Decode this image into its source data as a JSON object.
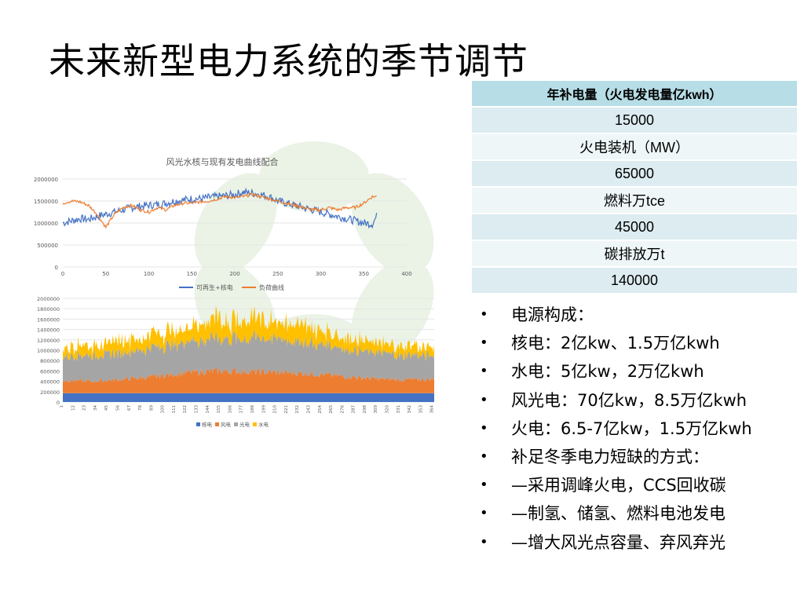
{
  "title": "未来新型电力系统的季节调节",
  "table": {
    "rows": [
      "年补电量（火电发电量亿kwh）",
      "15000",
      "火电装机（MW）",
      "65000",
      "燃料万tce",
      "45000",
      "碳排放万t",
      "140000"
    ]
  },
  "bullets": [
    "电源构成：",
    "核电：2亿kw、1.5万亿kwh",
    "水电：5亿kw，2万亿kwh",
    "风光电：70亿kw，8.5万亿kwh",
    "火电：6.5-7亿kw，1.5万亿kwh",
    "补足冬季电力短缺的方式：",
    "—采用调峰火电，CCS回收碳",
    "—制氢、储氢、燃料电池发电",
    "—增大风光点容量、弃风弃光"
  ],
  "bullet_symbol": "•",
  "colors": {
    "series_blue": "#4472c4",
    "series_orange": "#ed7d31",
    "series_gray": "#a5a5a5",
    "series_yellow": "#ffc000",
    "table_head": "#b7dde6",
    "watermark": "#d9ead3"
  },
  "chart_data": [
    {
      "type": "line",
      "title": "风光水核与现有发电曲线配合",
      "xlim": [
        0,
        400
      ],
      "ylim": [
        0,
        2000000
      ],
      "x_ticks": [
        "0",
        "50",
        "100",
        "150",
        "200",
        "250",
        "300",
        "350",
        "400"
      ],
      "y_ticks": [
        "0",
        "500000",
        "1000000",
        "1500000",
        "2000000"
      ],
      "grid": true,
      "legend_position": "bottom",
      "series": [
        {
          "name": "可再生+核电",
          "color": "#4472c4",
          "x": [
            0,
            10,
            20,
            30,
            40,
            50,
            60,
            70,
            80,
            90,
            100,
            110,
            120,
            130,
            140,
            150,
            160,
            170,
            180,
            190,
            200,
            210,
            220,
            230,
            240,
            250,
            260,
            270,
            280,
            290,
            300,
            310,
            320,
            330,
            340,
            350,
            360,
            365
          ],
          "y": [
            1000000,
            1050000,
            1100000,
            1080000,
            1150000,
            1200000,
            1250000,
            1300000,
            1350000,
            1380000,
            1400000,
            1420000,
            1450000,
            1500000,
            1520000,
            1550000,
            1550000,
            1580000,
            1600000,
            1620000,
            1650000,
            1700000,
            1680000,
            1650000,
            1600000,
            1500000,
            1450000,
            1400000,
            1350000,
            1300000,
            1250000,
            1200000,
            1150000,
            1100000,
            1050000,
            1000000,
            980000,
            1150000
          ]
        },
        {
          "name": "负荷曲线",
          "color": "#ed7d31",
          "x": [
            0,
            10,
            20,
            30,
            40,
            50,
            60,
            70,
            80,
            90,
            100,
            110,
            120,
            130,
            140,
            150,
            160,
            170,
            180,
            190,
            200,
            210,
            220,
            230,
            240,
            250,
            260,
            270,
            280,
            290,
            300,
            310,
            320,
            330,
            340,
            350,
            360,
            365
          ],
          "y": [
            1450000,
            1500000,
            1480000,
            1400000,
            1200000,
            900000,
            1200000,
            1350000,
            1400000,
            1300000,
            1250000,
            1350000,
            1300000,
            1400000,
            1450000,
            1450000,
            1480000,
            1500000,
            1550000,
            1600000,
            1580000,
            1600000,
            1650000,
            1600000,
            1550000,
            1500000,
            1450000,
            1400000,
            1350000,
            1300000,
            1300000,
            1350000,
            1300000,
            1350000,
            1350000,
            1450000,
            1600000,
            1600000
          ]
        }
      ]
    },
    {
      "type": "area",
      "stacked": true,
      "ylim": [
        0,
        2000000
      ],
      "y_ticks": [
        "0",
        "200000",
        "400000",
        "600000",
        "800000",
        "1000000",
        "1200000",
        "1400000",
        "1600000",
        "1800000",
        "2000000"
      ],
      "x_range": [
        1,
        365
      ],
      "x_tick_step": 11,
      "grid": true,
      "legend_position": "bottom",
      "series": [
        {
          "name": "核电",
          "color": "#4472c4",
          "values": [
            170000,
            170000,
            170000,
            170000,
            170000,
            170000,
            170000,
            170000,
            170000,
            170000,
            170000,
            170000,
            170000
          ]
        },
        {
          "name": "风电",
          "color": "#ed7d31",
          "values": [
            250000,
            230000,
            270000,
            320000,
            400000,
            430000,
            420000,
            400000,
            380000,
            330000,
            280000,
            260000,
            270000
          ]
        },
        {
          "name": "光电",
          "color": "#a5a5a5",
          "values": [
            480000,
            500000,
            520000,
            560000,
            600000,
            620000,
            650000,
            640000,
            600000,
            550000,
            500000,
            470000,
            460000
          ]
        },
        {
          "name": "水电",
          "color": "#ffc000",
          "values": [
            180000,
            200000,
            220000,
            250000,
            280000,
            350000,
            380000,
            360000,
            300000,
            240000,
            200000,
            180000,
            160000
          ]
        }
      ]
    }
  ]
}
